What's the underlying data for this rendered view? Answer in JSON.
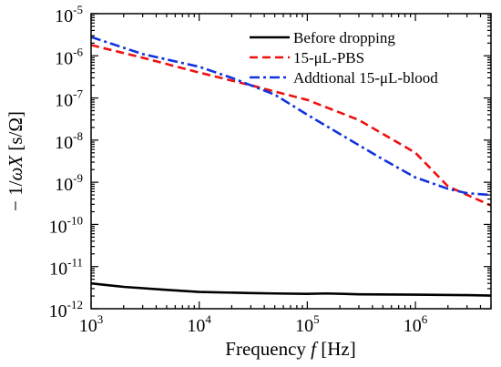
{
  "chart_data": {
    "type": "line",
    "x_scale": "log",
    "y_scale": "log",
    "xlim": [
      1000,
      5000000
    ],
    "ylim": [
      1e-12,
      1e-05
    ],
    "xlabel": {
      "main": "Frequency ",
      "italic": "f",
      "unit": " [Hz]"
    },
    "ylabel": {
      "prefix": "− 1/",
      "italic": "ωX",
      "unit": " [s/Ω]"
    },
    "x_ticks": [
      {
        "base": "10",
        "exp": "3",
        "value": 1000
      },
      {
        "base": "10",
        "exp": "4",
        "value": 10000
      },
      {
        "base": "10",
        "exp": "5",
        "value": 100000
      },
      {
        "base": "10",
        "exp": "6",
        "value": 1000000
      }
    ],
    "y_ticks": [
      {
        "base": "10",
        "exp": "-12",
        "value": 1e-12
      },
      {
        "base": "10",
        "exp": "-11",
        "value": 1e-11
      },
      {
        "base": "10",
        "exp": "-10",
        "value": 1e-10
      },
      {
        "base": "10",
        "exp": "-9",
        "value": 1e-09
      },
      {
        "base": "10",
        "exp": "-8",
        "value": 1e-08
      },
      {
        "base": "10",
        "exp": "-7",
        "value": 1e-07
      },
      {
        "base": "10",
        "exp": "-6",
        "value": 1e-06
      },
      {
        "base": "10",
        "exp": "-5",
        "value": 1e-05
      }
    ],
    "legend_position": "top-right",
    "series": [
      {
        "name": "Before dropping",
        "color": "#000000",
        "dash": "solid",
        "x": [
          1000,
          2000,
          5000,
          10000,
          30000,
          50000,
          100000,
          150000,
          300000,
          1000000,
          3000000,
          5000000
        ],
        "y": [
          4e-12,
          3.3e-12,
          2.8e-12,
          2.5e-12,
          2.35e-12,
          2.3e-12,
          2.25e-12,
          2.3e-12,
          2.2e-12,
          2.15e-12,
          2.1e-12,
          2.05e-12
        ]
      },
      {
        "name": "15-μL-PBS",
        "color": "#ee1111",
        "dash": "dashed",
        "x": [
          1000,
          3000,
          10000,
          30000,
          100000,
          300000,
          1000000,
          2000000,
          5000000
        ],
        "y": [
          1.8e-06,
          9e-07,
          4e-07,
          2e-07,
          9e-08,
          3e-08,
          5e-09,
          8e-10,
          2.8e-10
        ]
      },
      {
        "name": "Addtional 15-μL-blood",
        "color": "#1133dd",
        "dash": "dashdot",
        "x": [
          1000,
          3000,
          10000,
          20000,
          50000,
          100000,
          200000,
          500000,
          1000000,
          2000000,
          3000000,
          5000000
        ],
        "y": [
          2.8e-06,
          1.1e-06,
          5.5e-07,
          3e-07,
          1.2e-07,
          4e-08,
          1.4e-08,
          3.5e-09,
          1.3e-09,
          7e-10,
          5.5e-10,
          5e-10
        ]
      }
    ]
  }
}
